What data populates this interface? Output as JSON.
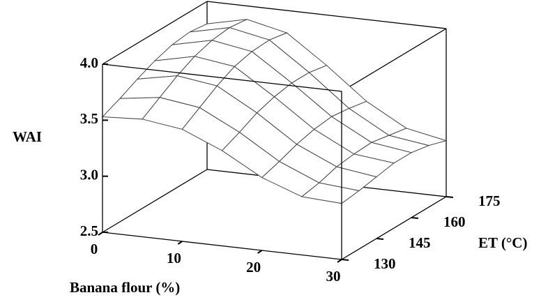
{
  "chart_data": {
    "type": "surface",
    "zlabel": "WAI",
    "xlabel": "Banana flour (%)",
    "ylabel": "ET (°C)",
    "x": [
      0,
      5,
      10,
      15,
      20,
      25,
      30
    ],
    "y": [
      130,
      137.5,
      145,
      152.5,
      160,
      167.5,
      175
    ],
    "z": [
      [
        3.53,
        3.55,
        3.5,
        3.35,
        3.15,
        3.02,
        3.0
      ],
      [
        3.6,
        3.65,
        3.6,
        3.42,
        3.2,
        3.05,
        3.02
      ],
      [
        3.68,
        3.75,
        3.7,
        3.5,
        3.26,
        3.1,
        3.05
      ],
      [
        3.75,
        3.83,
        3.78,
        3.55,
        3.3,
        3.12,
        3.08
      ],
      [
        3.8,
        3.88,
        3.82,
        3.58,
        3.32,
        3.13,
        3.08
      ],
      [
        3.82,
        3.9,
        3.83,
        3.58,
        3.3,
        3.1,
        3.05
      ],
      [
        3.8,
        3.88,
        3.8,
        3.55,
        3.27,
        3.07,
        3.0
      ]
    ],
    "xlim": [
      0,
      30
    ],
    "ylim": [
      130,
      175
    ],
    "zlim": [
      2.5,
      4.0
    ],
    "xticks": [
      0,
      10,
      20,
      30
    ],
    "yticks": [
      130,
      145,
      160,
      175
    ],
    "zticks": [
      2.5,
      {
        "value": 3,
        "label": "3.0"
      },
      3.5,
      {
        "value": 4,
        "label": "4.0"
      }
    ],
    "color": "#ffffff",
    "edgecolor": "#444444"
  }
}
